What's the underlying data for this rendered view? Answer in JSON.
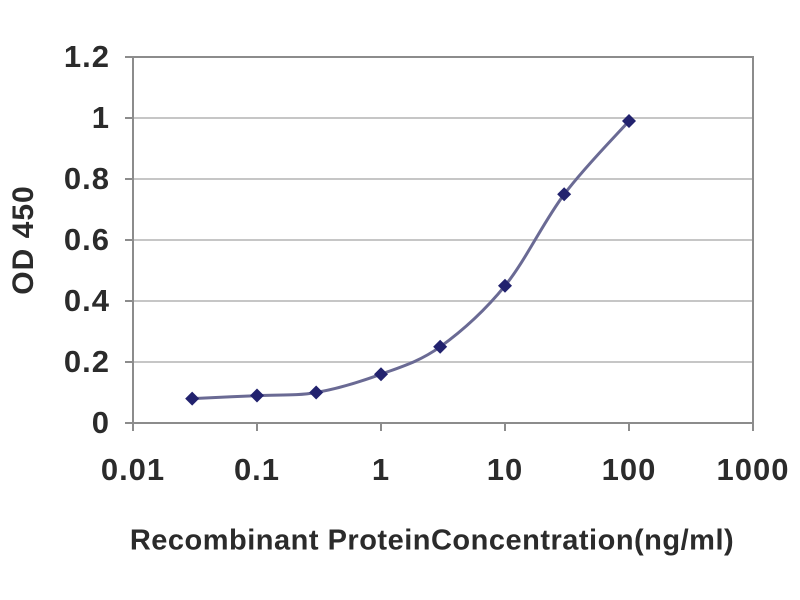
{
  "chart_data": {
    "type": "line",
    "title": "",
    "xlabel": "Recombinant ProteinConcentration(ng/ml)",
    "ylabel": "OD 450",
    "x_scale": "log",
    "y_scale": "linear",
    "x": [
      0.03,
      0.1,
      0.3,
      1,
      3,
      10,
      30,
      100
    ],
    "y": [
      0.08,
      0.09,
      0.1,
      0.16,
      0.25,
      0.45,
      0.75,
      0.99
    ],
    "xlim": [
      0.01,
      1000
    ],
    "ylim": [
      0,
      1.2
    ],
    "x_ticks": {
      "labels": [
        "0.01",
        "0.1",
        "1",
        "10",
        "100",
        "1000"
      ],
      "values": [
        0.01,
        0.1,
        1,
        10,
        100,
        1000
      ]
    },
    "y_ticks": {
      "labels": [
        "0",
        "0.2",
        "0.4",
        "0.6",
        "0.8",
        "1",
        "1.2"
      ],
      "values": [
        0,
        0.2,
        0.4,
        0.6,
        0.8,
        1,
        1.2
      ]
    },
    "grid": "horizontal",
    "legend": "none",
    "marker": "diamond",
    "colors": {
      "marker": "#22226e",
      "line": "#6a6a94",
      "gridline": "#c6c6c6",
      "plot_border": "#8c8c8c",
      "tick": "#8c8c8c",
      "text": "#2b2b2b",
      "background": "#ffffff"
    }
  }
}
